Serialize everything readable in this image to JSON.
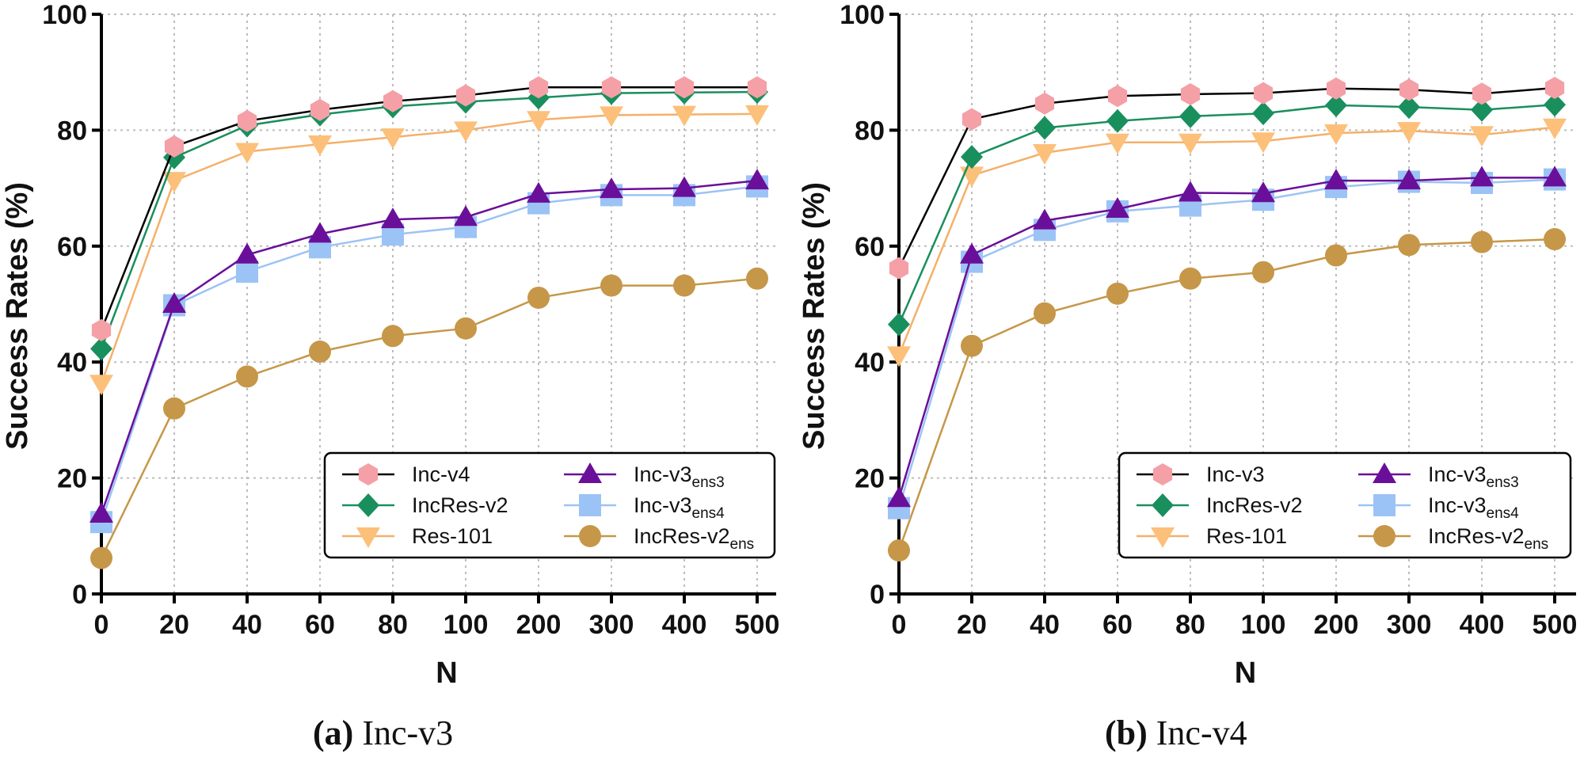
{
  "chart_data": [
    {
      "type": "line",
      "caption_tag": "(a)",
      "caption_text": "Inc-v3",
      "xlabel": "N",
      "ylabel": "Success Rates (%)",
      "categories": [
        "0",
        "20",
        "40",
        "60",
        "80",
        "100",
        "200",
        "300",
        "400",
        "500"
      ],
      "ylim": [
        0,
        100
      ],
      "yticks": [
        "0",
        "20",
        "40",
        "60",
        "80",
        "100"
      ],
      "grid": true,
      "legend_position": "bottom-right",
      "series": [
        {
          "name": "Inc-v4",
          "sub": "",
          "marker": "hexagon",
          "color": "#f4a0a6",
          "line": "#000000",
          "values": [
            45.5,
            77.2,
            81.6,
            83.5,
            85.0,
            86.0,
            87.4,
            87.4,
            87.4,
            87.4
          ]
        },
        {
          "name": "IncRes-v2",
          "sub": "",
          "marker": "diamond",
          "color": "#1a8f5e",
          "line": "#1a8f5e",
          "values": [
            42.3,
            75.3,
            80.8,
            82.7,
            84.1,
            84.9,
            85.6,
            86.4,
            86.5,
            86.6
          ]
        },
        {
          "name": "Res-101",
          "sub": "",
          "marker": "triangle-down",
          "color": "#fcc07a",
          "line": "#f5b06a",
          "values": [
            36.3,
            71.3,
            76.3,
            77.6,
            78.8,
            80.0,
            81.8,
            82.6,
            82.7,
            82.8
          ]
        },
        {
          "name": "Inc-v3",
          "sub": "ens3",
          "marker": "triangle-up",
          "color": "#6a0f9a",
          "line": "#6a0f9a",
          "values": [
            13.8,
            50.0,
            58.5,
            62.1,
            64.6,
            65.0,
            69.0,
            69.8,
            70.0,
            71.3
          ]
        },
        {
          "name": "Inc-v3",
          "sub": "ens4",
          "marker": "square",
          "color": "#9cc3f5",
          "line": "#9cc3f5",
          "values": [
            12.4,
            49.8,
            55.6,
            59.8,
            62.0,
            63.3,
            67.4,
            68.8,
            68.8,
            70.3
          ]
        },
        {
          "name": "IncRes-v2",
          "sub": "ens",
          "marker": "circle",
          "color": "#c69748",
          "line": "#c69748",
          "values": [
            6.2,
            32.0,
            37.5,
            41.8,
            44.5,
            45.8,
            51.1,
            53.2,
            53.2,
            54.4
          ]
        }
      ]
    },
    {
      "type": "line",
      "caption_tag": "(b)",
      "caption_text": "Inc-v4",
      "xlabel": "N",
      "ylabel": "Success Rates (%)",
      "categories": [
        "0",
        "20",
        "40",
        "60",
        "80",
        "100",
        "200",
        "300",
        "400",
        "500"
      ],
      "ylim": [
        0,
        100
      ],
      "yticks": [
        "0",
        "20",
        "40",
        "60",
        "80",
        "100"
      ],
      "grid": true,
      "legend_position": "bottom-right",
      "series": [
        {
          "name": "Inc-v3",
          "sub": "",
          "marker": "hexagon",
          "color": "#f4a0a6",
          "line": "#000000",
          "values": [
            56.2,
            81.9,
            84.6,
            85.9,
            86.2,
            86.4,
            87.2,
            87.0,
            86.3,
            87.3
          ]
        },
        {
          "name": "IncRes-v2",
          "sub": "",
          "marker": "diamond",
          "color": "#1a8f5e",
          "line": "#1a8f5e",
          "values": [
            46.5,
            75.4,
            80.4,
            81.6,
            82.4,
            82.9,
            84.3,
            84.0,
            83.5,
            84.4
          ]
        },
        {
          "name": "Res-101",
          "sub": "",
          "marker": "triangle-down",
          "color": "#fcc07a",
          "line": "#f5b06a",
          "values": [
            41.2,
            72.2,
            76.1,
            77.9,
            77.9,
            78.1,
            79.5,
            79.9,
            79.2,
            80.5
          ]
        },
        {
          "name": "Inc-v3",
          "sub": "ens3",
          "marker": "triangle-up",
          "color": "#6a0f9a",
          "line": "#6a0f9a",
          "values": [
            16.5,
            58.5,
            64.4,
            66.4,
            69.2,
            69.1,
            71.3,
            71.3,
            71.8,
            71.8
          ]
        },
        {
          "name": "Inc-v3",
          "sub": "ens4",
          "marker": "square",
          "color": "#9cc3f5",
          "line": "#9cc3f5",
          "values": [
            14.8,
            57.3,
            62.8,
            66.0,
            67.0,
            68.0,
            70.2,
            71.1,
            70.9,
            71.5
          ]
        },
        {
          "name": "IncRes-v2",
          "sub": "ens",
          "marker": "circle",
          "color": "#c69748",
          "line": "#c69748",
          "values": [
            7.5,
            42.8,
            48.4,
            51.8,
            54.4,
            55.5,
            58.4,
            60.2,
            60.7,
            61.2
          ]
        }
      ]
    }
  ]
}
